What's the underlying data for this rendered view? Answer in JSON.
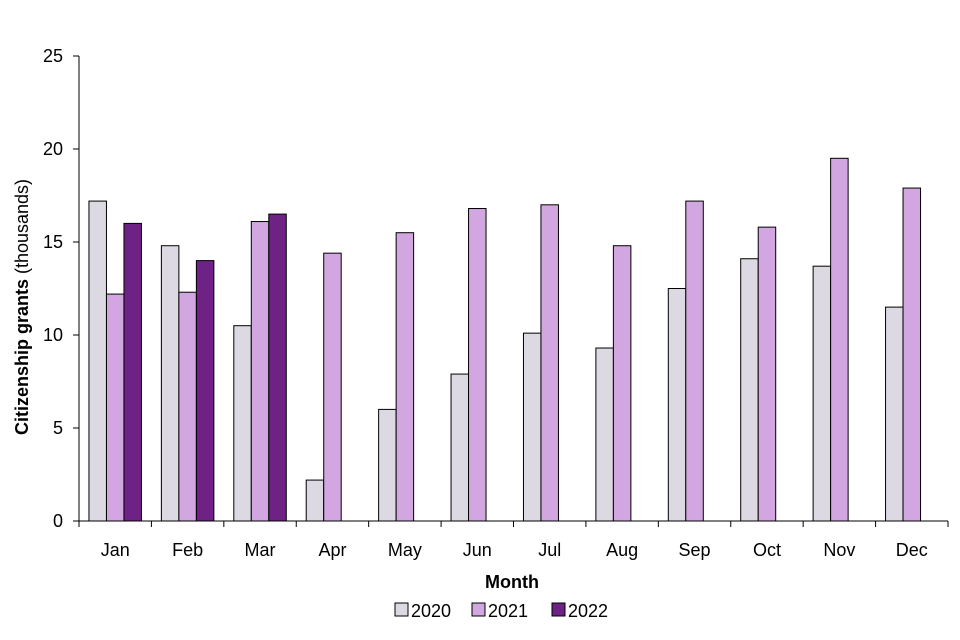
{
  "chart_data": {
    "type": "bar",
    "xlabel": "Month",
    "ylabel_bold": "Citizenship grants",
    "ylabel_rest": " (thousands)",
    "ylim": [
      0,
      25
    ],
    "yticks": [
      "0",
      "5",
      "10",
      "15",
      "20",
      "25"
    ],
    "categories": [
      "Jan",
      "Feb",
      "Mar",
      "Apr",
      "May",
      "Jun",
      "Jul",
      "Aug",
      "Sep",
      "Oct",
      "Nov",
      "Dec"
    ],
    "series": [
      {
        "name": "2020",
        "color": "#dcd9e3",
        "values": [
          17.2,
          14.8,
          10.5,
          2.2,
          6.0,
          7.9,
          10.1,
          9.3,
          12.5,
          14.1,
          13.7,
          11.5
        ]
      },
      {
        "name": "2021",
        "color": "#d2a6e0",
        "values": [
          12.2,
          12.3,
          16.1,
          14.4,
          15.5,
          16.8,
          17.0,
          14.8,
          17.2,
          15.8,
          19.5,
          17.9
        ]
      },
      {
        "name": "2022",
        "color": "#6f2286",
        "values": [
          16.0,
          14.0,
          16.5,
          null,
          null,
          null,
          null,
          null,
          null,
          null,
          null,
          null
        ]
      }
    ],
    "grid": false,
    "legend_position": "bottom"
  }
}
